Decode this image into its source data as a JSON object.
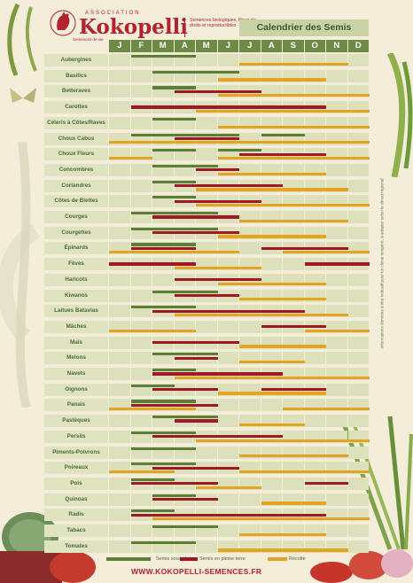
{
  "header": {
    "association": "ASSOCIATION",
    "brand": "Kokopelli",
    "tagline": "Semences biologiques, libres de droits et reproductibles",
    "sublogo": "Semences de vie",
    "calendar_title": "Calendrier des Semis"
  },
  "months": [
    "J",
    "F",
    "M",
    "A",
    "M",
    "J",
    "J",
    "A",
    "S",
    "O",
    "N",
    "D"
  ],
  "colors": {
    "abri": "#5b7f35",
    "terre": "#a01826",
    "recolte": "#e4a422",
    "brand": "#b1232e"
  },
  "rows": [
    {
      "name": "Aubergines",
      "abri": [
        [
          1,
          4
        ]
      ],
      "terre": [],
      "recolte": [
        [
          6,
          11
        ]
      ]
    },
    {
      "name": "Basilics",
      "abri": [
        [
          2,
          6
        ]
      ],
      "terre": [],
      "recolte": [
        [
          5,
          10
        ]
      ]
    },
    {
      "name": "Betteraves",
      "abri": [
        [
          2,
          4
        ]
      ],
      "terre": [
        [
          3,
          7
        ]
      ],
      "recolte": [
        [
          5,
          12
        ]
      ]
    },
    {
      "name": "Carottes",
      "abri": [],
      "terre": [
        [
          1,
          10
        ]
      ],
      "recolte": [
        [
          4,
          12
        ]
      ]
    },
    {
      "name": "Céleris à Côtes/Raves",
      "abri": [
        [
          2,
          4
        ]
      ],
      "terre": [],
      "recolte": [
        [
          5,
          12
        ]
      ]
    },
    {
      "name": "Choux Cabus",
      "abri": [
        [
          1,
          6
        ],
        [
          7,
          9
        ]
      ],
      "terre": [
        [
          3,
          6
        ]
      ],
      "recolte": [
        [
          0,
          12
        ]
      ]
    },
    {
      "name": "Choux Fleurs",
      "abri": [
        [
          2,
          4
        ],
        [
          5,
          7
        ]
      ],
      "terre": [
        [
          6,
          10
        ]
      ],
      "recolte": [
        [
          0,
          2
        ],
        [
          5,
          12
        ]
      ]
    },
    {
      "name": "Concombres",
      "abri": [
        [
          2,
          5
        ]
      ],
      "terre": [
        [
          4,
          6
        ]
      ],
      "recolte": [
        [
          5,
          10
        ]
      ]
    },
    {
      "name": "Coriandres",
      "abri": [
        [
          2,
          4
        ]
      ],
      "terre": [
        [
          3,
          8
        ]
      ],
      "recolte": [
        [
          4,
          11
        ]
      ]
    },
    {
      "name": "Côtes de Blettes",
      "abri": [
        [
          2,
          4
        ]
      ],
      "terre": [
        [
          3,
          7
        ]
      ],
      "recolte": [
        [
          4,
          12
        ]
      ]
    },
    {
      "name": "Courges",
      "abri": [
        [
          1,
          5
        ]
      ],
      "terre": [
        [
          2,
          6
        ]
      ],
      "recolte": [
        [
          6,
          11
        ]
      ]
    },
    {
      "name": "Courgettes",
      "abri": [
        [
          1,
          5
        ]
      ],
      "terre": [
        [
          2,
          6
        ]
      ],
      "recolte": [
        [
          5,
          10
        ]
      ]
    },
    {
      "name": "Épinards",
      "abri": [
        [
          1,
          4
        ]
      ],
      "terre": [
        [
          1,
          4
        ],
        [
          7,
          11
        ]
      ],
      "recolte": [
        [
          0,
          6
        ],
        [
          8,
          12
        ]
      ]
    },
    {
      "name": "Fèves",
      "abri": [],
      "terre": [
        [
          0,
          4
        ],
        [
          9,
          12
        ]
      ],
      "recolte": [
        [
          3,
          7
        ]
      ]
    },
    {
      "name": "Haricots",
      "abri": [],
      "terre": [
        [
          3,
          7
        ]
      ],
      "recolte": [
        [
          5,
          10
        ]
      ]
    },
    {
      "name": "Kiwanos",
      "abri": [
        [
          2,
          5
        ]
      ],
      "terre": [
        [
          3,
          6
        ]
      ],
      "recolte": [
        [
          6,
          10
        ]
      ]
    },
    {
      "name": "Laitues Batavias",
      "abri": [
        [
          1,
          4
        ]
      ],
      "terre": [
        [
          2,
          9
        ]
      ],
      "recolte": [
        [
          3,
          11
        ]
      ]
    },
    {
      "name": "Mâches",
      "abri": [],
      "terre": [
        [
          7,
          10
        ]
      ],
      "recolte": [
        [
          0,
          4
        ],
        [
          9,
          12
        ]
      ]
    },
    {
      "name": "Maïs",
      "abri": [],
      "terre": [
        [
          2,
          6
        ]
      ],
      "recolte": [
        [
          6,
          10
        ]
      ]
    },
    {
      "name": "Melons",
      "abri": [
        [
          2,
          5
        ]
      ],
      "terre": [
        [
          3,
          5
        ]
      ],
      "recolte": [
        [
          6,
          9
        ]
      ]
    },
    {
      "name": "Navets",
      "abri": [
        [
          2,
          4
        ]
      ],
      "terre": [
        [
          2,
          8
        ]
      ],
      "recolte": [
        [
          3,
          12
        ]
      ]
    },
    {
      "name": "Oignons",
      "abri": [
        [
          1,
          3
        ]
      ],
      "terre": [
        [
          2,
          5
        ],
        [
          7,
          10
        ]
      ],
      "recolte": [
        [
          5,
          10
        ]
      ]
    },
    {
      "name": "Panais",
      "abri": [
        [
          1,
          4
        ]
      ],
      "terre": [
        [
          1,
          5
        ]
      ],
      "recolte": [
        [
          0,
          4
        ],
        [
          8,
          12
        ]
      ]
    },
    {
      "name": "Pastèques",
      "abri": [
        [
          2,
          5
        ]
      ],
      "terre": [
        [
          3,
          5
        ]
      ],
      "recolte": [
        [
          6,
          9
        ]
      ]
    },
    {
      "name": "Persils",
      "abri": [
        [
          1,
          4
        ]
      ],
      "terre": [
        [
          2,
          8
        ]
      ],
      "recolte": [
        [
          4,
          12
        ]
      ]
    },
    {
      "name": "Piments-Poivrons",
      "abri": [
        [
          1,
          4
        ]
      ],
      "terre": [],
      "recolte": [
        [
          6,
          11
        ]
      ]
    },
    {
      "name": "Poireaux",
      "abri": [
        [
          1,
          4
        ]
      ],
      "terre": [
        [
          2,
          6
        ]
      ],
      "recolte": [
        [
          0,
          3
        ],
        [
          6,
          12
        ]
      ]
    },
    {
      "name": "Pois",
      "abri": [
        [
          1,
          3
        ]
      ],
      "terre": [
        [
          1,
          5
        ],
        [
          9,
          11
        ]
      ],
      "recolte": [
        [
          4,
          7
        ]
      ]
    },
    {
      "name": "Quinoas",
      "abri": [
        [
          2,
          4
        ]
      ],
      "terre": [
        [
          2,
          5
        ]
      ],
      "recolte": [
        [
          7,
          10
        ]
      ]
    },
    {
      "name": "Radis",
      "abri": [
        [
          1,
          3
        ]
      ],
      "terre": [
        [
          1,
          10
        ]
      ],
      "recolte": [
        [
          2,
          12
        ]
      ]
    },
    {
      "name": "Tabacs",
      "abri": [
        [
          2,
          5
        ]
      ],
      "terre": [],
      "recolte": [
        [
          6,
          10
        ]
      ]
    },
    {
      "name": "Tomates",
      "abri": [
        [
          1,
          4
        ]
      ],
      "terre": [],
      "recolte": [
        [
          5,
          11
        ]
      ]
    }
  ],
  "legend": {
    "abri": "Semis sous abris",
    "terre": "Semis en pleine terre",
    "recolte": "Récolte"
  },
  "website": "WWW.KOKOPELLI-SEMENCES.FR",
  "sidenote": "Informations données à titre indicatif pour un climat tempéré, à adapter selon le climat régional"
}
